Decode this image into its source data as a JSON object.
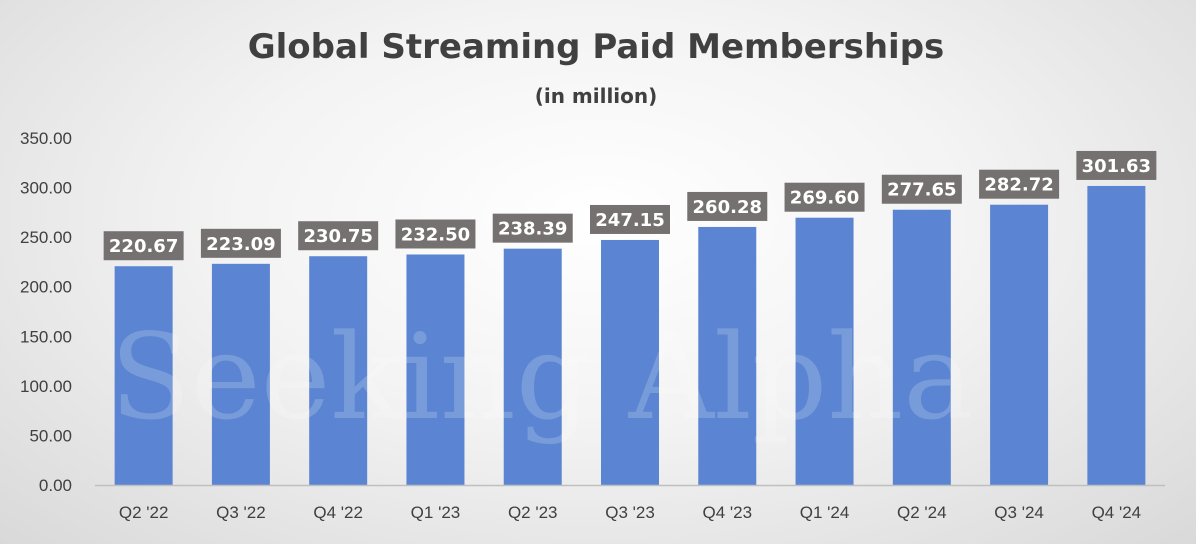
{
  "chart_data": {
    "type": "bar",
    "title": "Global Streaming Paid Memberships",
    "subtitle": "(in million)",
    "xlabel": "",
    "ylabel": "",
    "categories": [
      "Q2 '22",
      "Q3 '22",
      "Q4 '22",
      "Q1 '23",
      "Q2 '23",
      "Q3 '23",
      "Q4 '23",
      "Q1 '24",
      "Q2 '24",
      "Q3 '24",
      "Q4 '24"
    ],
    "values": [
      220.67,
      223.09,
      230.75,
      232.5,
      238.39,
      247.15,
      260.28,
      269.6,
      277.65,
      282.72,
      301.63
    ],
    "value_labels": [
      "220.67",
      "223.09",
      "230.75",
      "232.50",
      "238.39",
      "247.15",
      "260.28",
      "269.60",
      "277.65",
      "282.72",
      "301.63"
    ],
    "ylim": [
      0,
      350
    ],
    "yticks": [
      "0.00",
      "50.00",
      "100.00",
      "150.00",
      "200.00",
      "250.00",
      "300.00",
      "350.00"
    ],
    "grid": false,
    "legend": "none",
    "colors": {
      "bar": "#5b85d2",
      "label_bg": "#767171",
      "text": "#404040"
    }
  },
  "watermark": "Seeking Alpha"
}
